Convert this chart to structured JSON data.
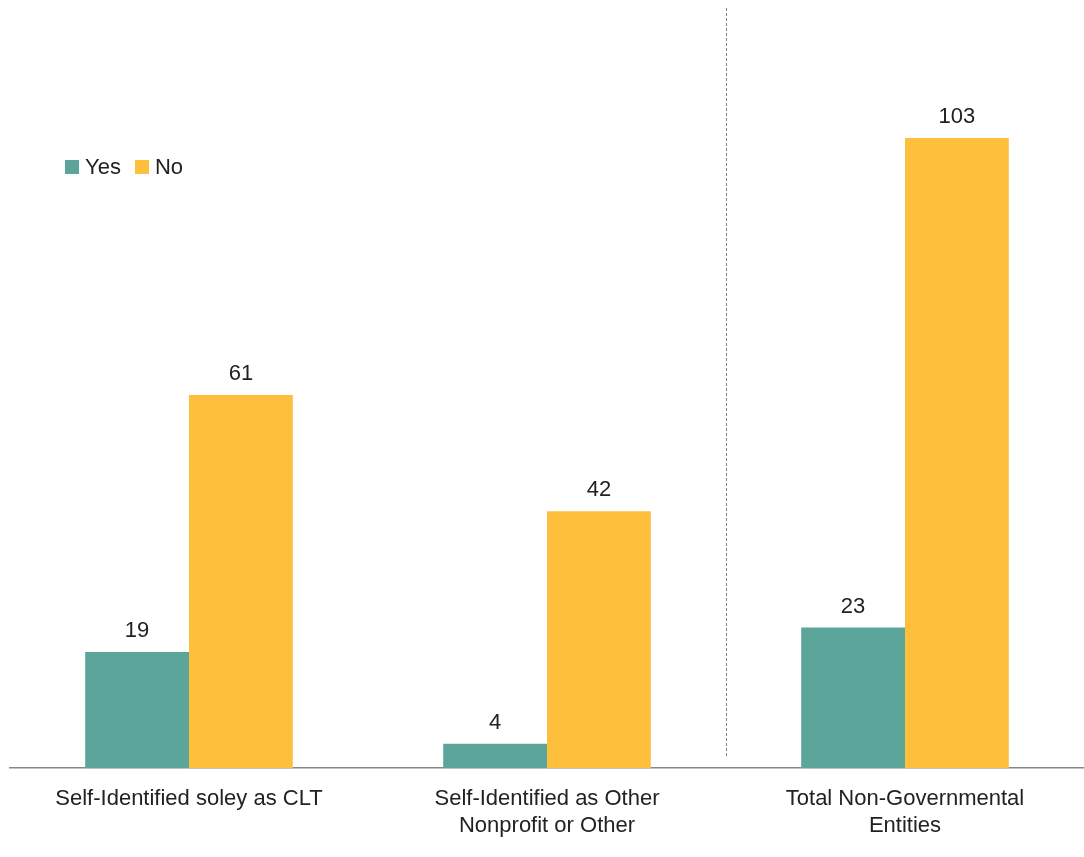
{
  "chart_data": {
    "type": "bar",
    "categories": [
      "Self-Identified soley as CLT",
      "Self-Identified as Other Nonprofit or Other",
      "Total Non-Governmental Entities"
    ],
    "series": [
      {
        "name": "Yes",
        "color": "#5ba59a",
        "values": [
          19,
          4,
          23
        ]
      },
      {
        "name": "No",
        "color": "#fec03c",
        "values": [
          61,
          42,
          103
        ]
      }
    ],
    "tick_labels": "x",
    "data_labels": true,
    "legend": "top left",
    "grid": false
  }
}
